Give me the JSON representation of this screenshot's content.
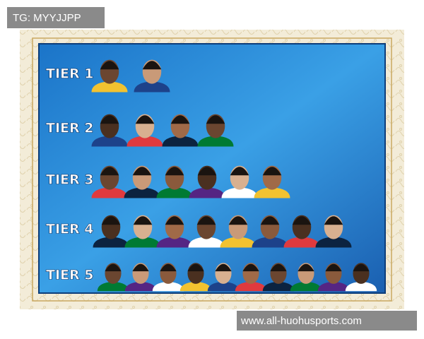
{
  "watermark_top": "TG: MYYJJPP",
  "tiers": [
    {
      "label": "TIER 1"
    },
    {
      "label": "TIER 2"
    },
    {
      "label": "TIER 3"
    },
    {
      "label": "TIER 4"
    },
    {
      "label": "TIER 5"
    }
  ],
  "watermark_bottom": "www.all-huohusports.com"
}
